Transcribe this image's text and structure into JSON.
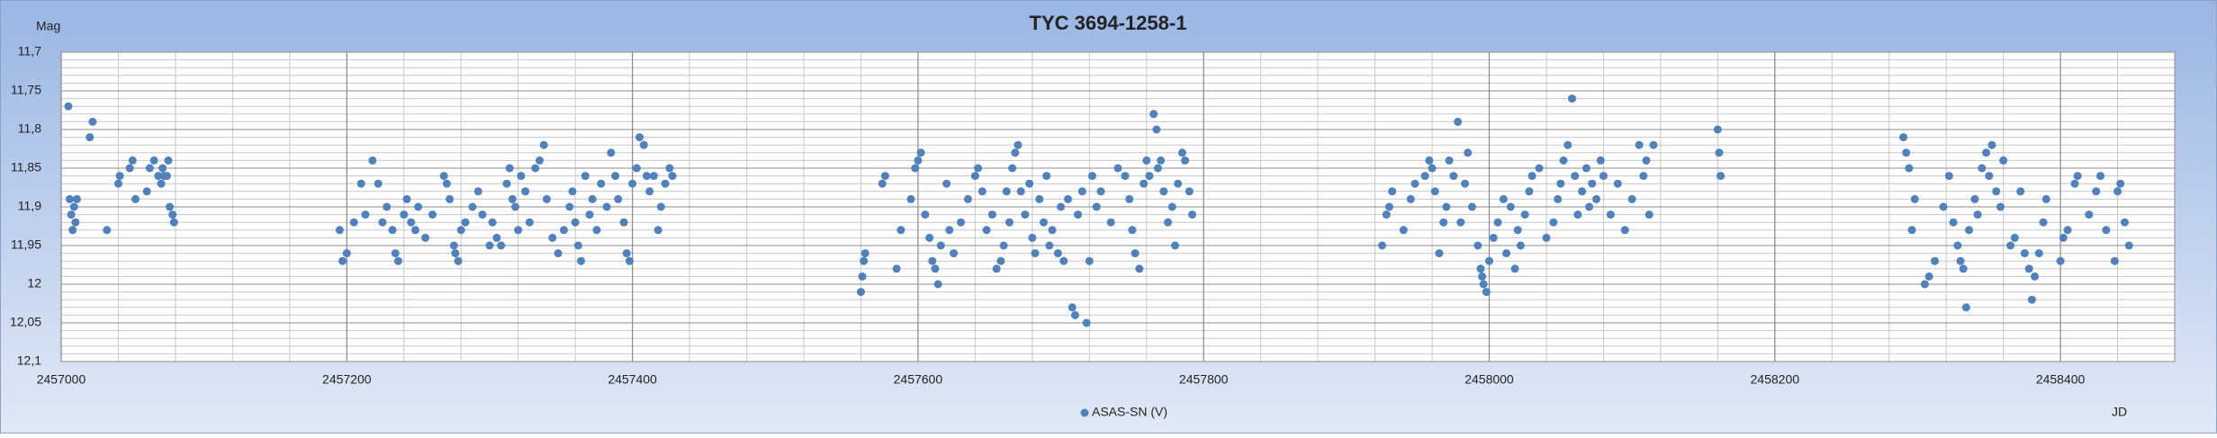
{
  "chart_data": {
    "type": "scatter",
    "title": "TYC 3694-1258-1",
    "y_label": "Mag",
    "x_label": "JD",
    "xlim": [
      2457000,
      2458480
    ],
    "xticks": [
      2457000,
      2457200,
      2457400,
      2457600,
      2457800,
      2458000,
      2458200,
      2458400
    ],
    "x_minor_step": 40,
    "ylim": [
      11.7,
      12.1
    ],
    "y_inverted": true,
    "yticks": [
      {
        "value": 11.7,
        "label": "11,7"
      },
      {
        "value": 11.75,
        "label": "11,75"
      },
      {
        "value": 11.8,
        "label": "11,8"
      },
      {
        "value": 11.85,
        "label": "11,85"
      },
      {
        "value": 11.9,
        "label": "11,9"
      },
      {
        "value": 11.95,
        "label": "11,95"
      },
      12,
      {
        "value": 12.05,
        "label": "12,05"
      },
      {
        "value": 12.1,
        "label": "12,1"
      }
    ],
    "y_minor_step": 0.01,
    "grid": true,
    "legend": "bottom",
    "x": [
      2457005,
      2457006,
      2457007,
      2457008,
      2457009,
      2457010,
      2457011,
      2457020,
      2457022,
      2457032,
      2457040,
      2457041,
      2457048,
      2457050,
      2457052,
      2457060,
      2457062,
      2457065,
      2457068,
      2457070,
      2457071,
      2457072,
      2457074,
      2457075,
      2457076,
      2457078,
      2457079,
      2457195,
      2457197,
      2457200,
      2457205,
      2457210,
      2457213,
      2457218,
      2457222,
      2457225,
      2457228,
      2457232,
      2457234,
      2457236,
      2457240,
      2457242,
      2457245,
      2457248,
      2457250,
      2457255,
      2457260,
      2457268,
      2457270,
      2457272,
      2457275,
      2457276,
      2457278,
      2457280,
      2457283,
      2457288,
      2457292,
      2457295,
      2457300,
      2457302,
      2457305,
      2457308,
      2457312,
      2457314,
      2457316,
      2457318,
      2457320,
      2457322,
      2457325,
      2457328,
      2457332,
      2457335,
      2457338,
      2457340,
      2457344,
      2457348,
      2457352,
      2457356,
      2457358,
      2457360,
      2457362,
      2457364,
      2457367,
      2457370,
      2457372,
      2457375,
      2457378,
      2457382,
      2457385,
      2457388,
      2457390,
      2457394,
      2457396,
      2457398,
      2457400,
      2457403,
      2457405,
      2457408,
      2457410,
      2457412,
      2457415,
      2457418,
      2457420,
      2457423,
      2457426,
      2457428,
      2457560,
      2457561,
      2457562,
      2457563,
      2457575,
      2457577,
      2457585,
      2457588,
      2457595,
      2457598,
      2457600,
      2457602,
      2457605,
      2457608,
      2457610,
      2457612,
      2457614,
      2457616,
      2457620,
      2457622,
      2457625,
      2457630,
      2457635,
      2457640,
      2457642,
      2457645,
      2457648,
      2457652,
      2457655,
      2457658,
      2457660,
      2457662,
      2457664,
      2457666,
      2457668,
      2457670,
      2457672,
      2457675,
      2457678,
      2457680,
      2457682,
      2457685,
      2457688,
      2457690,
      2457692,
      2457694,
      2457698,
      2457700,
      2457702,
      2457705,
      2457708,
      2457710,
      2457712,
      2457715,
      2457718,
      2457720,
      2457722,
      2457725,
      2457728,
      2457735,
      2457740,
      2457745,
      2457748,
      2457750,
      2457752,
      2457755,
      2457758,
      2457760,
      2457762,
      2457765,
      2457767,
      2457768,
      2457770,
      2457772,
      2457775,
      2457778,
      2457780,
      2457782,
      2457785,
      2457787,
      2457790,
      2457792,
      2457925,
      2457928,
      2457930,
      2457932,
      2457940,
      2457945,
      2457948,
      2457955,
      2457958,
      2457960,
      2457962,
      2457965,
      2457968,
      2457970,
      2457972,
      2457975,
      2457978,
      2457980,
      2457983,
      2457985,
      2457988,
      2457992,
      2457994,
      2457995,
      2457996,
      2457998,
      2458000,
      2458003,
      2458006,
      2458010,
      2458012,
      2458015,
      2458018,
      2458020,
      2458022,
      2458025,
      2458028,
      2458030,
      2458035,
      2458040,
      2458045,
      2458048,
      2458050,
      2458052,
      2458055,
      2458058,
      2458060,
      2458062,
      2458065,
      2458068,
      2458070,
      2458072,
      2458075,
      2458078,
      2458080,
      2458085,
      2458090,
      2458095,
      2458100,
      2458105,
      2458108,
      2458110,
      2458112,
      2458115,
      2458160,
      2458161,
      2458162,
      2458290,
      2458292,
      2458294,
      2458296,
      2458298,
      2458305,
      2458308,
      2458312,
      2458318,
      2458322,
      2458325,
      2458328,
      2458330,
      2458332,
      2458334,
      2458336,
      2458340,
      2458342,
      2458345,
      2458348,
      2458350,
      2458352,
      2458355,
      2458358,
      2458360,
      2458365,
      2458368,
      2458372,
      2458375,
      2458378,
      2458380,
      2458382,
      2458385,
      2458388,
      2458390,
      2458400,
      2458402,
      2458405,
      2458410,
      2458412,
      2458420,
      2458425,
      2458428,
      2458432,
      2458438,
      2458440,
      2458442,
      2458445,
      2458448
    ],
    "series": [
      {
        "name": "ASAS-SN (V)",
        "color": "#4f81bd",
        "values": [
          11.77,
          11.89,
          11.91,
          11.93,
          11.9,
          11.92,
          11.89,
          11.81,
          11.79,
          11.93,
          11.87,
          11.86,
          11.85,
          11.84,
          11.89,
          11.88,
          11.85,
          11.84,
          11.86,
          11.87,
          11.85,
          11.86,
          11.86,
          11.84,
          11.9,
          11.91,
          11.92,
          11.93,
          11.97,
          11.96,
          11.92,
          11.87,
          11.91,
          11.84,
          11.87,
          11.92,
          11.9,
          11.93,
          11.96,
          11.97,
          11.91,
          11.89,
          11.92,
          11.93,
          11.9,
          11.94,
          11.91,
          11.86,
          11.87,
          11.89,
          11.95,
          11.96,
          11.97,
          11.93,
          11.92,
          11.9,
          11.88,
          11.91,
          11.95,
          11.92,
          11.94,
          11.95,
          11.87,
          11.85,
          11.89,
          11.9,
          11.93,
          11.86,
          11.88,
          11.92,
          11.85,
          11.84,
          11.82,
          11.89,
          11.94,
          11.96,
          11.93,
          11.9,
          11.88,
          11.92,
          11.95,
          11.97,
          11.86,
          11.91,
          11.89,
          11.93,
          11.87,
          11.9,
          11.83,
          11.86,
          11.89,
          11.92,
          11.96,
          11.97,
          11.87,
          11.85,
          11.81,
          11.82,
          11.86,
          11.88,
          11.86,
          11.93,
          11.9,
          11.87,
          11.85,
          11.86,
          12.01,
          11.99,
          11.97,
          11.96,
          11.87,
          11.86,
          11.98,
          11.93,
          11.89,
          11.85,
          11.84,
          11.83,
          11.91,
          11.94,
          11.97,
          11.98,
          12.0,
          11.95,
          11.87,
          11.93,
          11.96,
          11.92,
          11.89,
          11.86,
          11.85,
          11.88,
          11.93,
          11.91,
          11.98,
          11.97,
          11.95,
          11.88,
          11.92,
          11.85,
          11.83,
          11.82,
          11.88,
          11.91,
          11.87,
          11.94,
          11.96,
          11.89,
          11.92,
          11.86,
          11.95,
          11.93,
          11.96,
          11.9,
          11.97,
          11.89,
          12.03,
          12.04,
          11.91,
          11.88,
          12.05,
          11.97,
          11.86,
          11.9,
          11.88,
          11.92,
          11.85,
          11.86,
          11.89,
          11.93,
          11.96,
          11.98,
          11.87,
          11.84,
          11.86,
          11.78,
          11.8,
          11.85,
          11.84,
          11.88,
          11.92,
          11.9,
          11.95,
          11.87,
          11.83,
          11.84,
          11.88,
          11.91,
          11.95,
          11.91,
          11.9,
          11.88,
          11.93,
          11.89,
          11.87,
          11.86,
          11.84,
          11.85,
          11.88,
          11.96,
          11.92,
          11.9,
          11.84,
          11.86,
          11.79,
          11.92,
          11.87,
          11.83,
          11.9,
          11.95,
          11.98,
          11.99,
          12.0,
          12.01,
          11.97,
          11.94,
          11.92,
          11.89,
          11.96,
          11.9,
          11.98,
          11.93,
          11.95,
          11.91,
          11.88,
          11.86,
          11.85,
          11.94,
          11.92,
          11.89,
          11.87,
          11.84,
          11.82,
          11.76,
          11.86,
          11.91,
          11.88,
          11.85,
          11.9,
          11.87,
          11.89,
          11.84,
          11.86,
          11.91,
          11.87,
          11.93,
          11.89,
          11.82,
          11.86,
          11.84,
          11.91,
          11.82,
          11.8,
          11.83,
          11.86,
          11.81,
          11.83,
          11.85,
          11.93,
          11.89,
          12.0,
          11.99,
          11.97,
          11.9,
          11.86,
          11.92,
          11.95,
          11.97,
          11.98,
          12.03,
          11.93,
          11.89,
          11.91,
          11.85,
          11.83,
          11.86,
          11.82,
          11.88,
          11.9,
          11.84,
          11.95,
          11.94,
          11.88,
          11.96,
          11.98,
          12.02,
          11.99,
          11.96,
          11.92,
          11.89,
          11.97,
          11.94,
          11.93,
          11.87,
          11.86,
          11.91,
          11.88,
          11.86,
          11.93,
          11.97,
          11.88,
          11.87,
          11.92,
          11.95
        ]
      }
    ]
  }
}
